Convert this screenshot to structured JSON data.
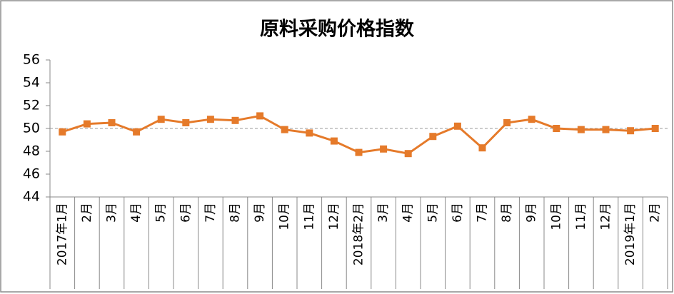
{
  "chart_data": {
    "type": "line",
    "title": "原料采购价格指数",
    "categories": [
      "2017年1月",
      "2月",
      "3月",
      "4月",
      "5月",
      "6月",
      "7月",
      "8月",
      "9月",
      "10月",
      "11月",
      "12月",
      "2018年2月",
      "3月",
      "4月",
      "5月",
      "6月",
      "7月",
      "8月",
      "9月",
      "10月",
      "11月",
      "12月",
      "2019年1月",
      "2月"
    ],
    "series": [
      {
        "name": "原料采购价格指数",
        "color": "#E57A2A",
        "values": [
          49.7,
          50.4,
          50.5,
          49.7,
          50.8,
          50.5,
          50.8,
          50.7,
          51.1,
          49.9,
          49.6,
          48.9,
          47.9,
          48.2,
          47.8,
          49.3,
          50.2,
          48.3,
          50.5,
          50.8,
          50.0,
          49.9,
          49.9,
          49.8,
          50.0
        ]
      }
    ],
    "ylim": [
      44,
      56
    ],
    "yticks": [
      44,
      46,
      48,
      50,
      52,
      54,
      56
    ],
    "reference_line": 50
  }
}
